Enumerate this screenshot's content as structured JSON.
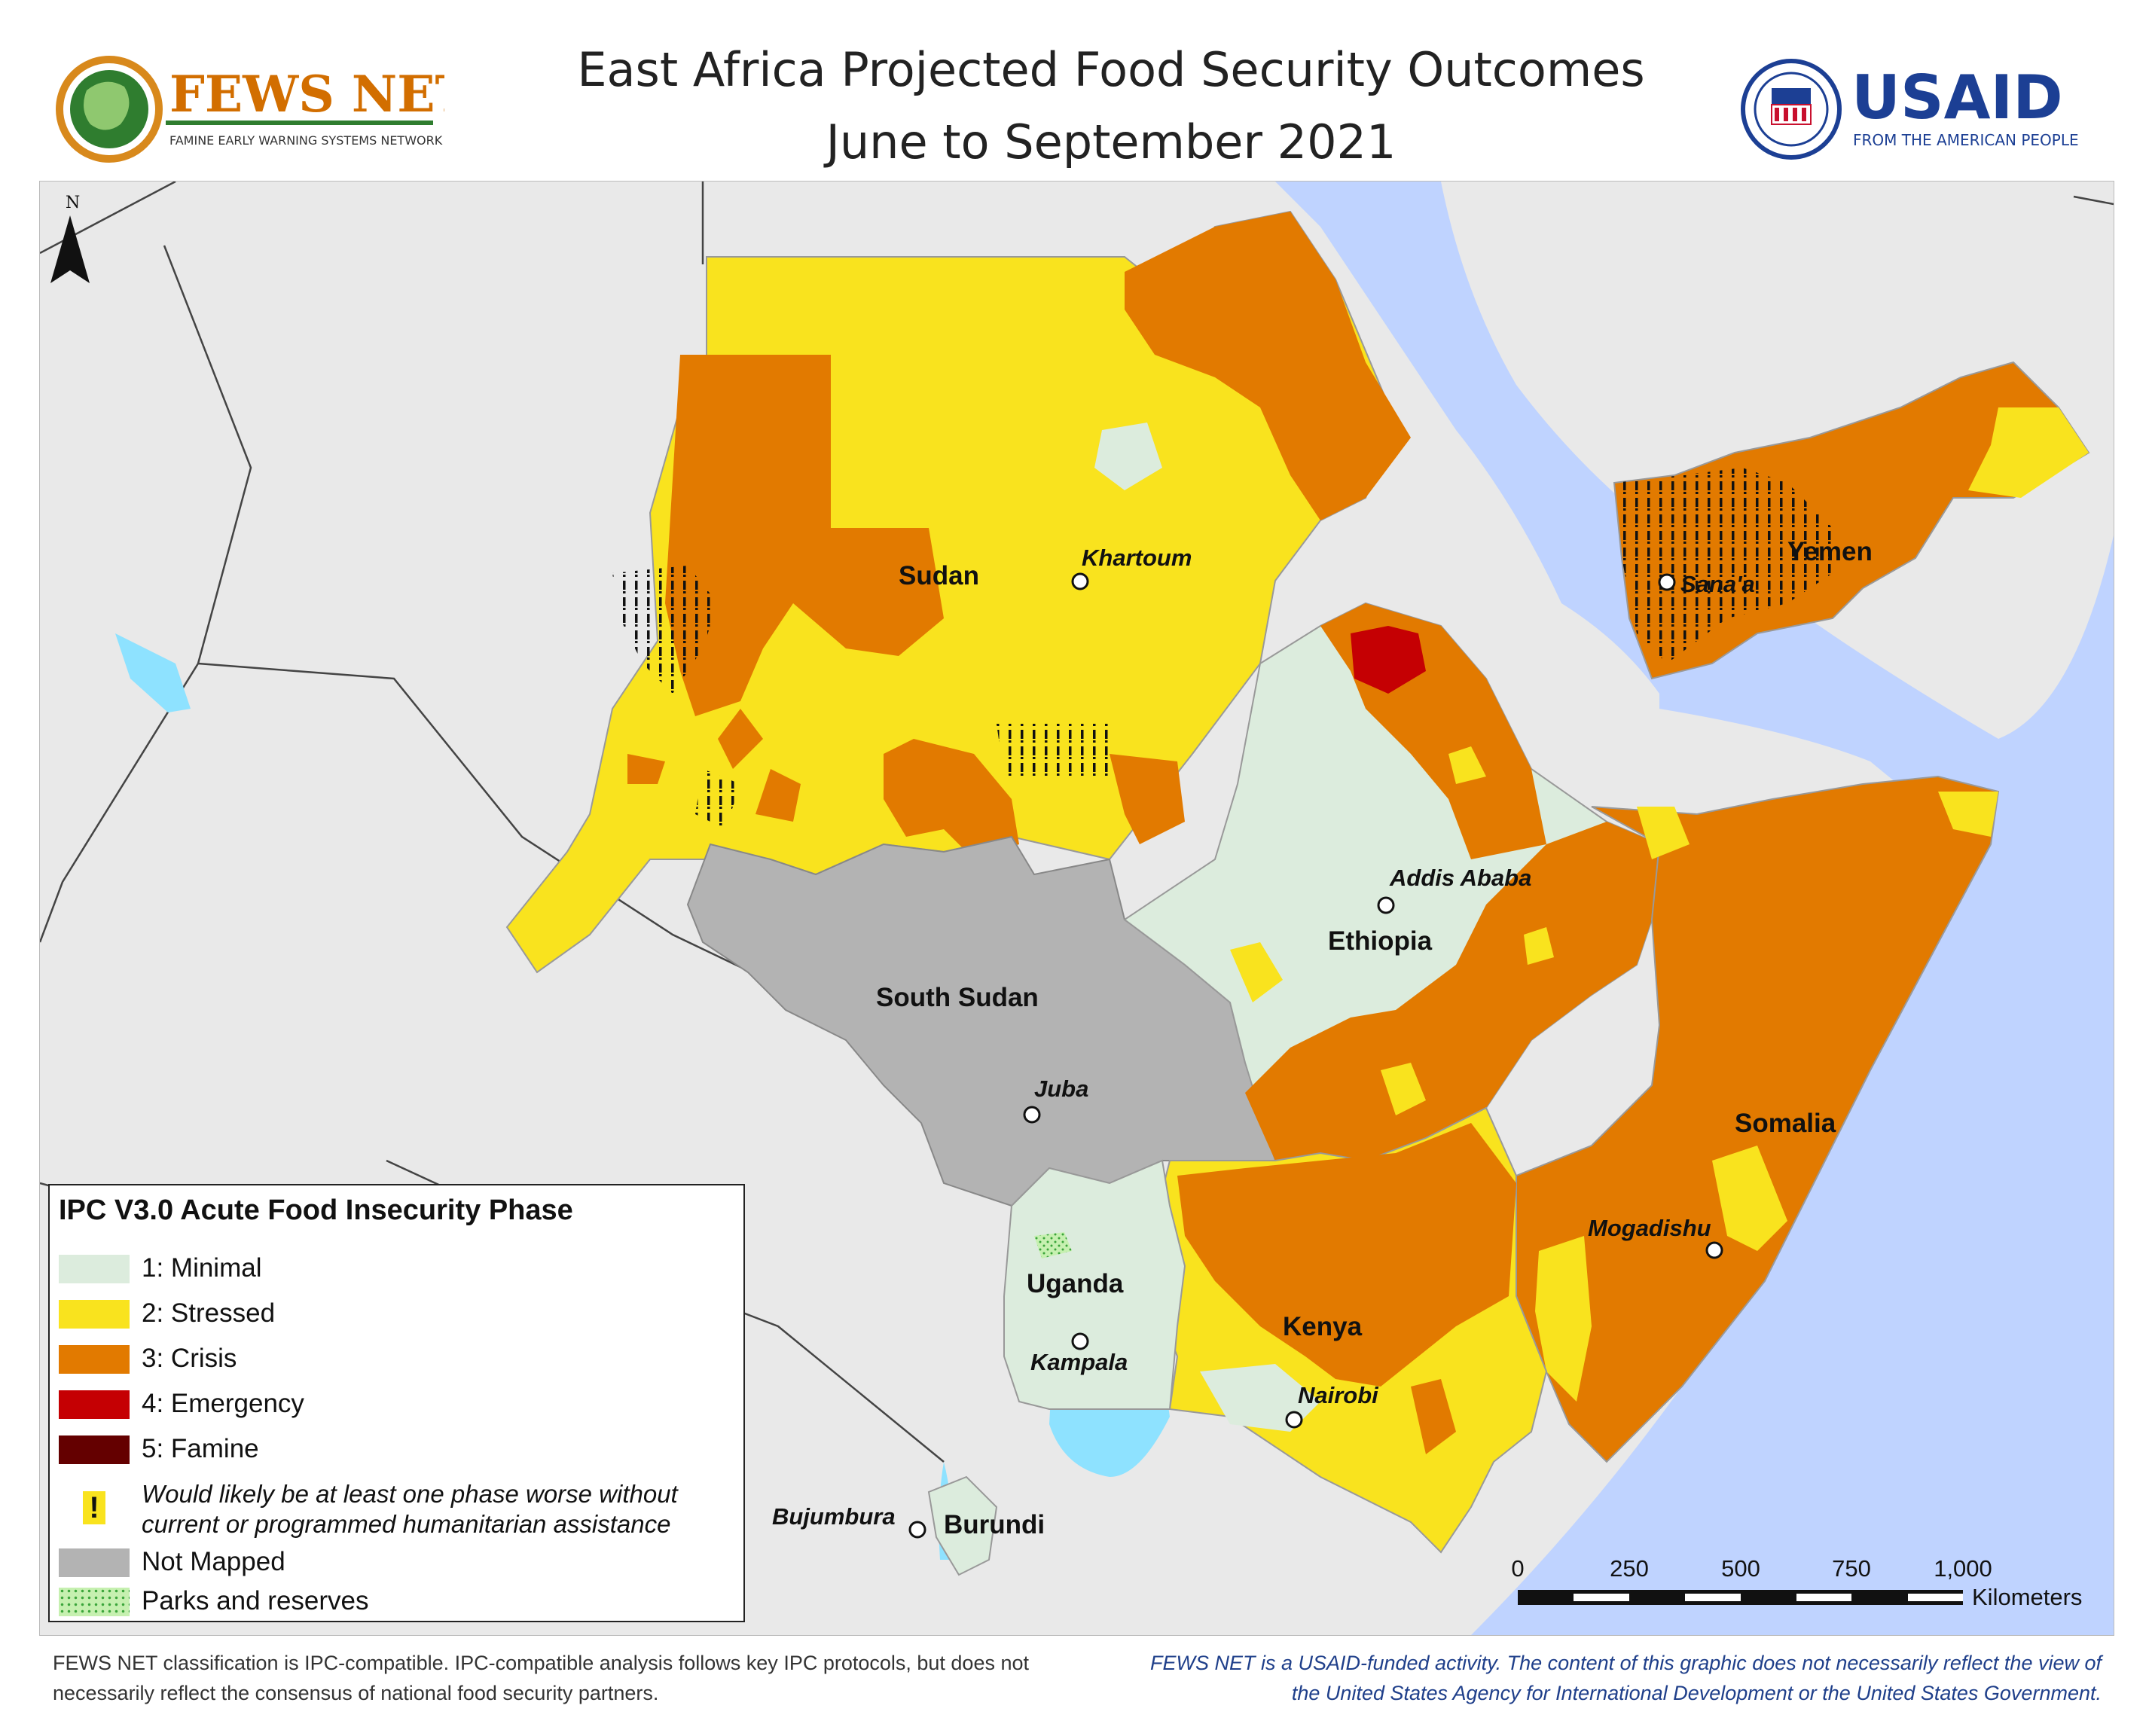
{
  "header": {
    "title_line1": "East Africa Projected Food Security Outcomes",
    "title_line2": "June to September 2021"
  },
  "logos": {
    "fews_net": {
      "name": "FEWS NET",
      "tagline": "FAMINE EARLY WARNING SYSTEMS NETWORK"
    },
    "usaid": {
      "name": "USAID",
      "tagline": "FROM THE AMERICAN PEOPLE"
    }
  },
  "map": {
    "north_arrow": "N",
    "countries": [
      "Sudan",
      "South Sudan",
      "Ethiopia",
      "Somalia",
      "Kenya",
      "Uganda",
      "Burundi",
      "Yemen"
    ],
    "cities": [
      "Khartoum",
      "Addis Ababa",
      "Juba",
      "Mogadishu",
      "Kampala",
      "Nairobi",
      "Bujumbura",
      "Sana'a"
    ],
    "scale_bar": {
      "ticks": [
        "0",
        "250",
        "500",
        "750",
        "1,000"
      ],
      "unit": "Kilometers"
    },
    "colors": {
      "minimal": "#dcecdd",
      "stressed": "#f9e31e",
      "crisis": "#e27a00",
      "emergency": "#c50003",
      "famine": "#640000",
      "not_mapped": "#b3b3b3",
      "water": "#bfd3ff",
      "lake": "#8ee2ff",
      "background": "#e9e9e9"
    }
  },
  "legend": {
    "title": "IPC V3.0 Acute Food Insecurity Phase",
    "items": [
      {
        "label": "1: Minimal",
        "color": "#dcecdd"
      },
      {
        "label": "2: Stressed",
        "color": "#f9e31e"
      },
      {
        "label": "3: Crisis",
        "color": "#e27a00"
      },
      {
        "label": "4: Emergency",
        "color": "#c50003"
      },
      {
        "label": "5: Famine",
        "color": "#640000"
      }
    ],
    "assistance_symbol": "!",
    "assistance_label": "Would likely be at least one phase worse without current or programmed humanitarian assistance",
    "not_mapped": "Not Mapped",
    "parks": "Parks and reserves"
  },
  "footer": {
    "left": "FEWS NET classification is IPC-compatible. IPC-compatible analysis follows key IPC protocols, but does not necessarily reflect the consensus of national food security partners.",
    "right": "FEWS NET is a USAID-funded activity. The content of this graphic does not necessarily reflect the view of the United States Agency for International Development or the United States Government."
  }
}
